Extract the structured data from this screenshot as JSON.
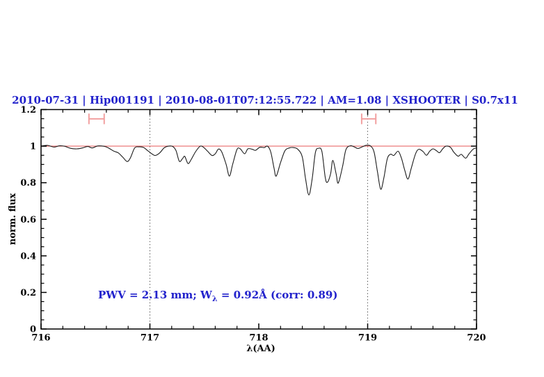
{
  "figure": {
    "background": "#ffffff"
  },
  "chart_data": {
    "type": "line",
    "title": "2010-07-31 | Hip001191 | 2010-08-01T07:12:55.722 | AM=1.08 | XSHOOTER | S0.7x11",
    "xlabel": "λ(AA)",
    "ylabel": "norm. flux",
    "xlim": [
      716,
      720
    ],
    "ylim": [
      0,
      1.2
    ],
    "legend": "none",
    "grid": "off",
    "x_ticks": {
      "values": [
        716,
        717,
        718,
        719,
        720
      ],
      "labels": [
        "716",
        "717",
        "718",
        "719",
        "720"
      ],
      "minor_step": 0.2
    },
    "y_ticks": {
      "values": [
        0,
        0.2,
        0.4,
        0.6,
        0.8,
        1.0,
        1.2
      ],
      "labels": [
        "0",
        "0.2",
        "0.4",
        "0.6",
        "0.8",
        "1",
        "1.2"
      ],
      "minor_step": 0.05
    },
    "reference_vlines": {
      "x": [
        717,
        719
      ],
      "style": "dotted"
    },
    "continuum_line": {
      "y": 1.0
    },
    "range_markers": {
      "items": [
        {
          "x": 716.51,
          "y": 1.149,
          "half_width": 0.07,
          "cap_half_height": 0.029
        },
        {
          "x": 719.01,
          "y": 1.149,
          "half_width": 0.065,
          "cap_half_height": 0.029
        }
      ]
    },
    "annotation": {
      "pre": "PWV = 2.13 mm; W",
      "sub": "λ",
      "post": " = 0.92Å (corr: 0.89)",
      "x_data": 716.52,
      "y_data": 0.2
    },
    "colors": {
      "title": "#2222cc",
      "annotation": "#2222cc",
      "spectrum": "#1c1c1c",
      "continuum": "#e96a6a",
      "marker": "#f2a0a0",
      "vline": "#3c3c3c",
      "axis": "#000000"
    },
    "series": [
      {
        "name": "observed normalized spectrum",
        "x": [
          716.0,
          716.06,
          716.12,
          716.17,
          716.22,
          716.27,
          716.33,
          716.38,
          716.43,
          716.47,
          716.52,
          716.58,
          716.62,
          716.67,
          716.71,
          716.75,
          716.79,
          716.82,
          716.86,
          716.9,
          716.94,
          716.98,
          717.02,
          717.05,
          717.09,
          717.13,
          717.17,
          717.21,
          717.24,
          717.27,
          717.3,
          717.32,
          717.35,
          717.38,
          717.42,
          717.46,
          717.49,
          717.53,
          717.57,
          717.6,
          717.63,
          717.66,
          717.7,
          717.73,
          717.76,
          717.8,
          717.83,
          717.87,
          717.9,
          717.94,
          717.97,
          718.01,
          718.05,
          718.08,
          718.11,
          718.14,
          718.16,
          718.2,
          718.24,
          718.28,
          718.32,
          718.36,
          718.4,
          718.43,
          718.46,
          718.49,
          718.52,
          718.55,
          718.58,
          718.61,
          718.63,
          718.66,
          718.68,
          718.71,
          718.73,
          718.77,
          718.8,
          718.84,
          718.88,
          718.91,
          718.95,
          718.99,
          719.03,
          719.06,
          719.09,
          719.12,
          719.15,
          719.18,
          719.21,
          719.24,
          719.28,
          719.31,
          719.34,
          719.37,
          719.4,
          719.44,
          719.47,
          719.51,
          719.54,
          719.57,
          719.6,
          719.63,
          719.66,
          719.69,
          719.72,
          719.76,
          719.79,
          719.83,
          719.86,
          719.9,
          719.93,
          719.97,
          720.0
        ],
        "y": [
          1.0,
          1.004,
          0.995,
          1.002,
          0.999,
          0.988,
          0.985,
          0.99,
          0.998,
          0.99,
          1.001,
          0.999,
          0.99,
          0.972,
          0.963,
          0.94,
          0.916,
          0.935,
          0.99,
          0.996,
          0.993,
          0.975,
          0.957,
          0.949,
          0.963,
          0.99,
          1.0,
          0.998,
          0.975,
          0.917,
          0.932,
          0.944,
          0.905,
          0.928,
          0.97,
          0.999,
          0.995,
          0.972,
          0.949,
          0.958,
          0.984,
          0.968,
          0.9,
          0.836,
          0.9,
          0.982,
          0.985,
          0.958,
          0.985,
          0.983,
          0.977,
          0.994,
          0.992,
          1.0,
          0.968,
          0.88,
          0.836,
          0.91,
          0.975,
          0.99,
          0.992,
          0.982,
          0.94,
          0.82,
          0.733,
          0.82,
          0.965,
          0.988,
          0.97,
          0.83,
          0.802,
          0.85,
          0.922,
          0.85,
          0.798,
          0.89,
          0.98,
          1.002,
          0.995,
          0.987,
          0.996,
          1.005,
          0.999,
          0.965,
          0.86,
          0.764,
          0.83,
          0.93,
          0.956,
          0.949,
          0.972,
          0.935,
          0.87,
          0.82,
          0.878,
          0.958,
          0.983,
          0.97,
          0.95,
          0.972,
          0.985,
          0.976,
          0.964,
          0.986,
          1.0,
          0.994,
          0.968,
          0.945,
          0.955,
          0.934,
          0.957,
          0.984,
          0.99
        ]
      }
    ]
  }
}
